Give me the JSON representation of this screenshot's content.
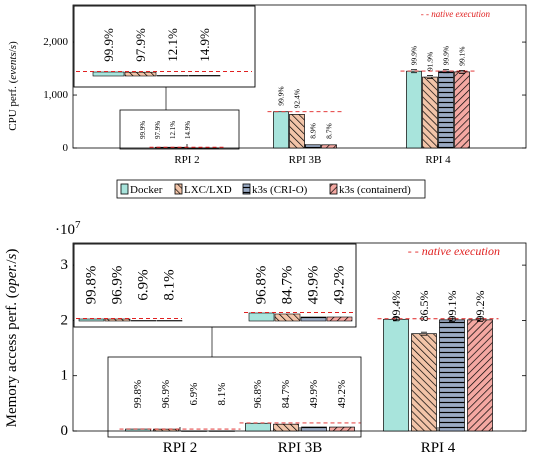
{
  "chart_data": [
    {
      "type": "bar",
      "ylabel": "CPU perf. (events/s)",
      "ylabel_parts": [
        "CPU perf. (",
        "events",
        "/",
        "s",
        ")"
      ],
      "ylim": [
        0,
        2700
      ],
      "yticks": [
        0,
        1000,
        2000
      ],
      "ytick_labels": [
        "0",
        "1,000",
        "2,000"
      ],
      "categories": [
        "RPI 2",
        "RPI 3B",
        "RPI 4"
      ],
      "series": [
        {
          "name": "Docker",
          "values": [
            14,
            685,
            1450
          ],
          "labels": [
            "99.9%",
            "99.9%",
            "99.9%"
          ]
        },
        {
          "name": "LXC/LXD",
          "values": [
            13.6,
            634,
            1339
          ],
          "labels": [
            "97.9%",
            "92.4%",
            "91.9%"
          ]
        },
        {
          "name": "k3s (CRI-O)",
          "values": [
            1.7,
            61,
            1450
          ],
          "labels": [
            "12.1%",
            "8.9%",
            "99.9%"
          ]
        },
        {
          "name": "k3s (containerd)",
          "values": [
            2.1,
            60,
            1437
          ],
          "labels": [
            "14.9%",
            "8.7%",
            "99.1%"
          ]
        }
      ],
      "native": [
        14,
        685,
        1452
      ],
      "native_label": "native execution",
      "legend_position": "below",
      "inset": {
        "category": "RPI 2",
        "labels": [
          "99.9%",
          "97.9%",
          "12.1%",
          "14.9%"
        ]
      }
    },
    {
      "type": "bar",
      "ylabel": "Memory access perf. (oper./s)",
      "ylabel_parts": [
        "Memory access perf. (",
        "oper.",
        "/",
        "s",
        ")"
      ],
      "multiplier": "·10",
      "multiplier_exp": "7",
      "ylim": [
        0,
        34000000
      ],
      "yticks": [
        0,
        10000000,
        20000000,
        30000000
      ],
      "ytick_labels": [
        "0",
        "1",
        "2",
        "3"
      ],
      "categories": [
        "RPI 2",
        "RPI 3B",
        "RPI 4"
      ],
      "series": [
        {
          "name": "Docker",
          "values": [
            350000,
            1400000,
            20200000
          ],
          "labels": [
            "99.8%",
            "96.8%",
            "99.4%"
          ]
        },
        {
          "name": "LXC/LXD",
          "values": [
            340000,
            1230000,
            17600000
          ],
          "labels": [
            "96.9%",
            "84.7%",
            "86.5%"
          ]
        },
        {
          "name": "k3s (CRI-O)",
          "values": [
            24000,
            720000,
            20100000
          ],
          "labels": [
            "6.9%",
            "49.9%",
            "99.1%"
          ]
        },
        {
          "name": "k3s (containerd)",
          "values": [
            28000,
            710000,
            20100000
          ],
          "labels": [
            "8.1%",
            "49.2%",
            "99.2%"
          ]
        }
      ],
      "native": [
        350000,
        1450000,
        20300000
      ],
      "native_label": "native execution",
      "inset": {
        "categories": [
          "RPI 2",
          "RPI 3B"
        ],
        "labels": [
          [
            "99.8%",
            "96.9%",
            "6.9%",
            "8.1%"
          ],
          [
            "96.8%",
            "84.7%",
            "49.9%",
            "49.2%"
          ]
        ]
      }
    }
  ],
  "legend": {
    "items": [
      "Docker",
      "LXC/LXD",
      "k3s (CRI-O)",
      "k3s (containerd)"
    ]
  },
  "colors": {
    "docker": "#a8e4dc",
    "lxc": "#f2c4a8",
    "crio": "#9aaac4",
    "containerd": "#f4a8a2",
    "native": "#e02020"
  }
}
